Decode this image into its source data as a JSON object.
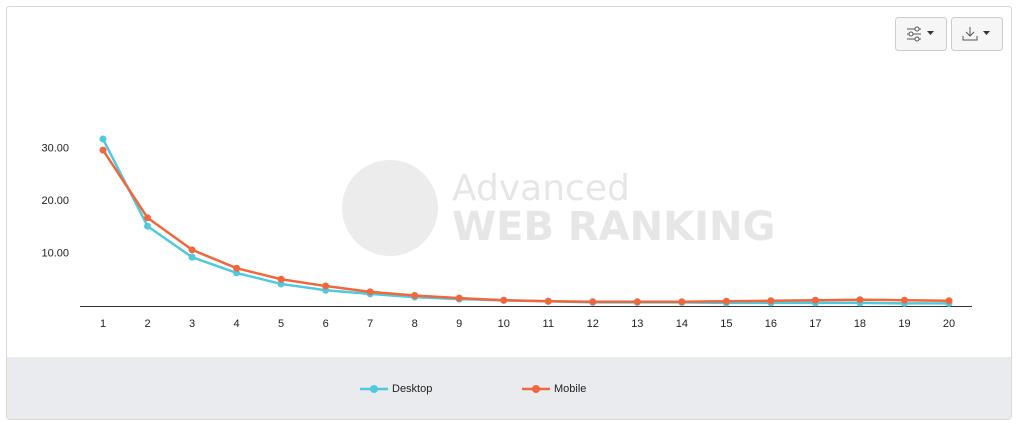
{
  "chart_data": {
    "type": "line",
    "watermark": [
      "Advanced",
      "WEB RANKING"
    ],
    "categories": [
      "1",
      "2",
      "3",
      "4",
      "5",
      "6",
      "7",
      "8",
      "9",
      "10",
      "11",
      "12",
      "13",
      "14",
      "15",
      "16",
      "17",
      "18",
      "19",
      "20"
    ],
    "series": [
      {
        "name": "Desktop",
        "color": "#4fc9dd",
        "values": [
          31.8,
          15.2,
          9.3,
          6.3,
          4.2,
          3.0,
          2.3,
          1.7,
          1.3,
          1.1,
          0.9,
          0.7,
          0.7,
          0.7,
          0.6,
          0.6,
          0.6,
          0.6,
          0.5,
          0.5
        ]
      },
      {
        "name": "Mobile",
        "color": "#f0663d",
        "values": [
          29.7,
          16.8,
          10.7,
          7.2,
          5.1,
          3.8,
          2.7,
          2.0,
          1.5,
          1.1,
          0.9,
          0.8,
          0.8,
          0.8,
          0.9,
          1.0,
          1.1,
          1.2,
          1.1,
          1.0
        ]
      }
    ],
    "ylim": [
      0,
      40
    ],
    "yticks": [
      {
        "value": 10,
        "label": "10.00"
      },
      {
        "value": 20,
        "label": "20.00"
      },
      {
        "value": 30,
        "label": "30.00"
      }
    ],
    "grid": false
  }
}
